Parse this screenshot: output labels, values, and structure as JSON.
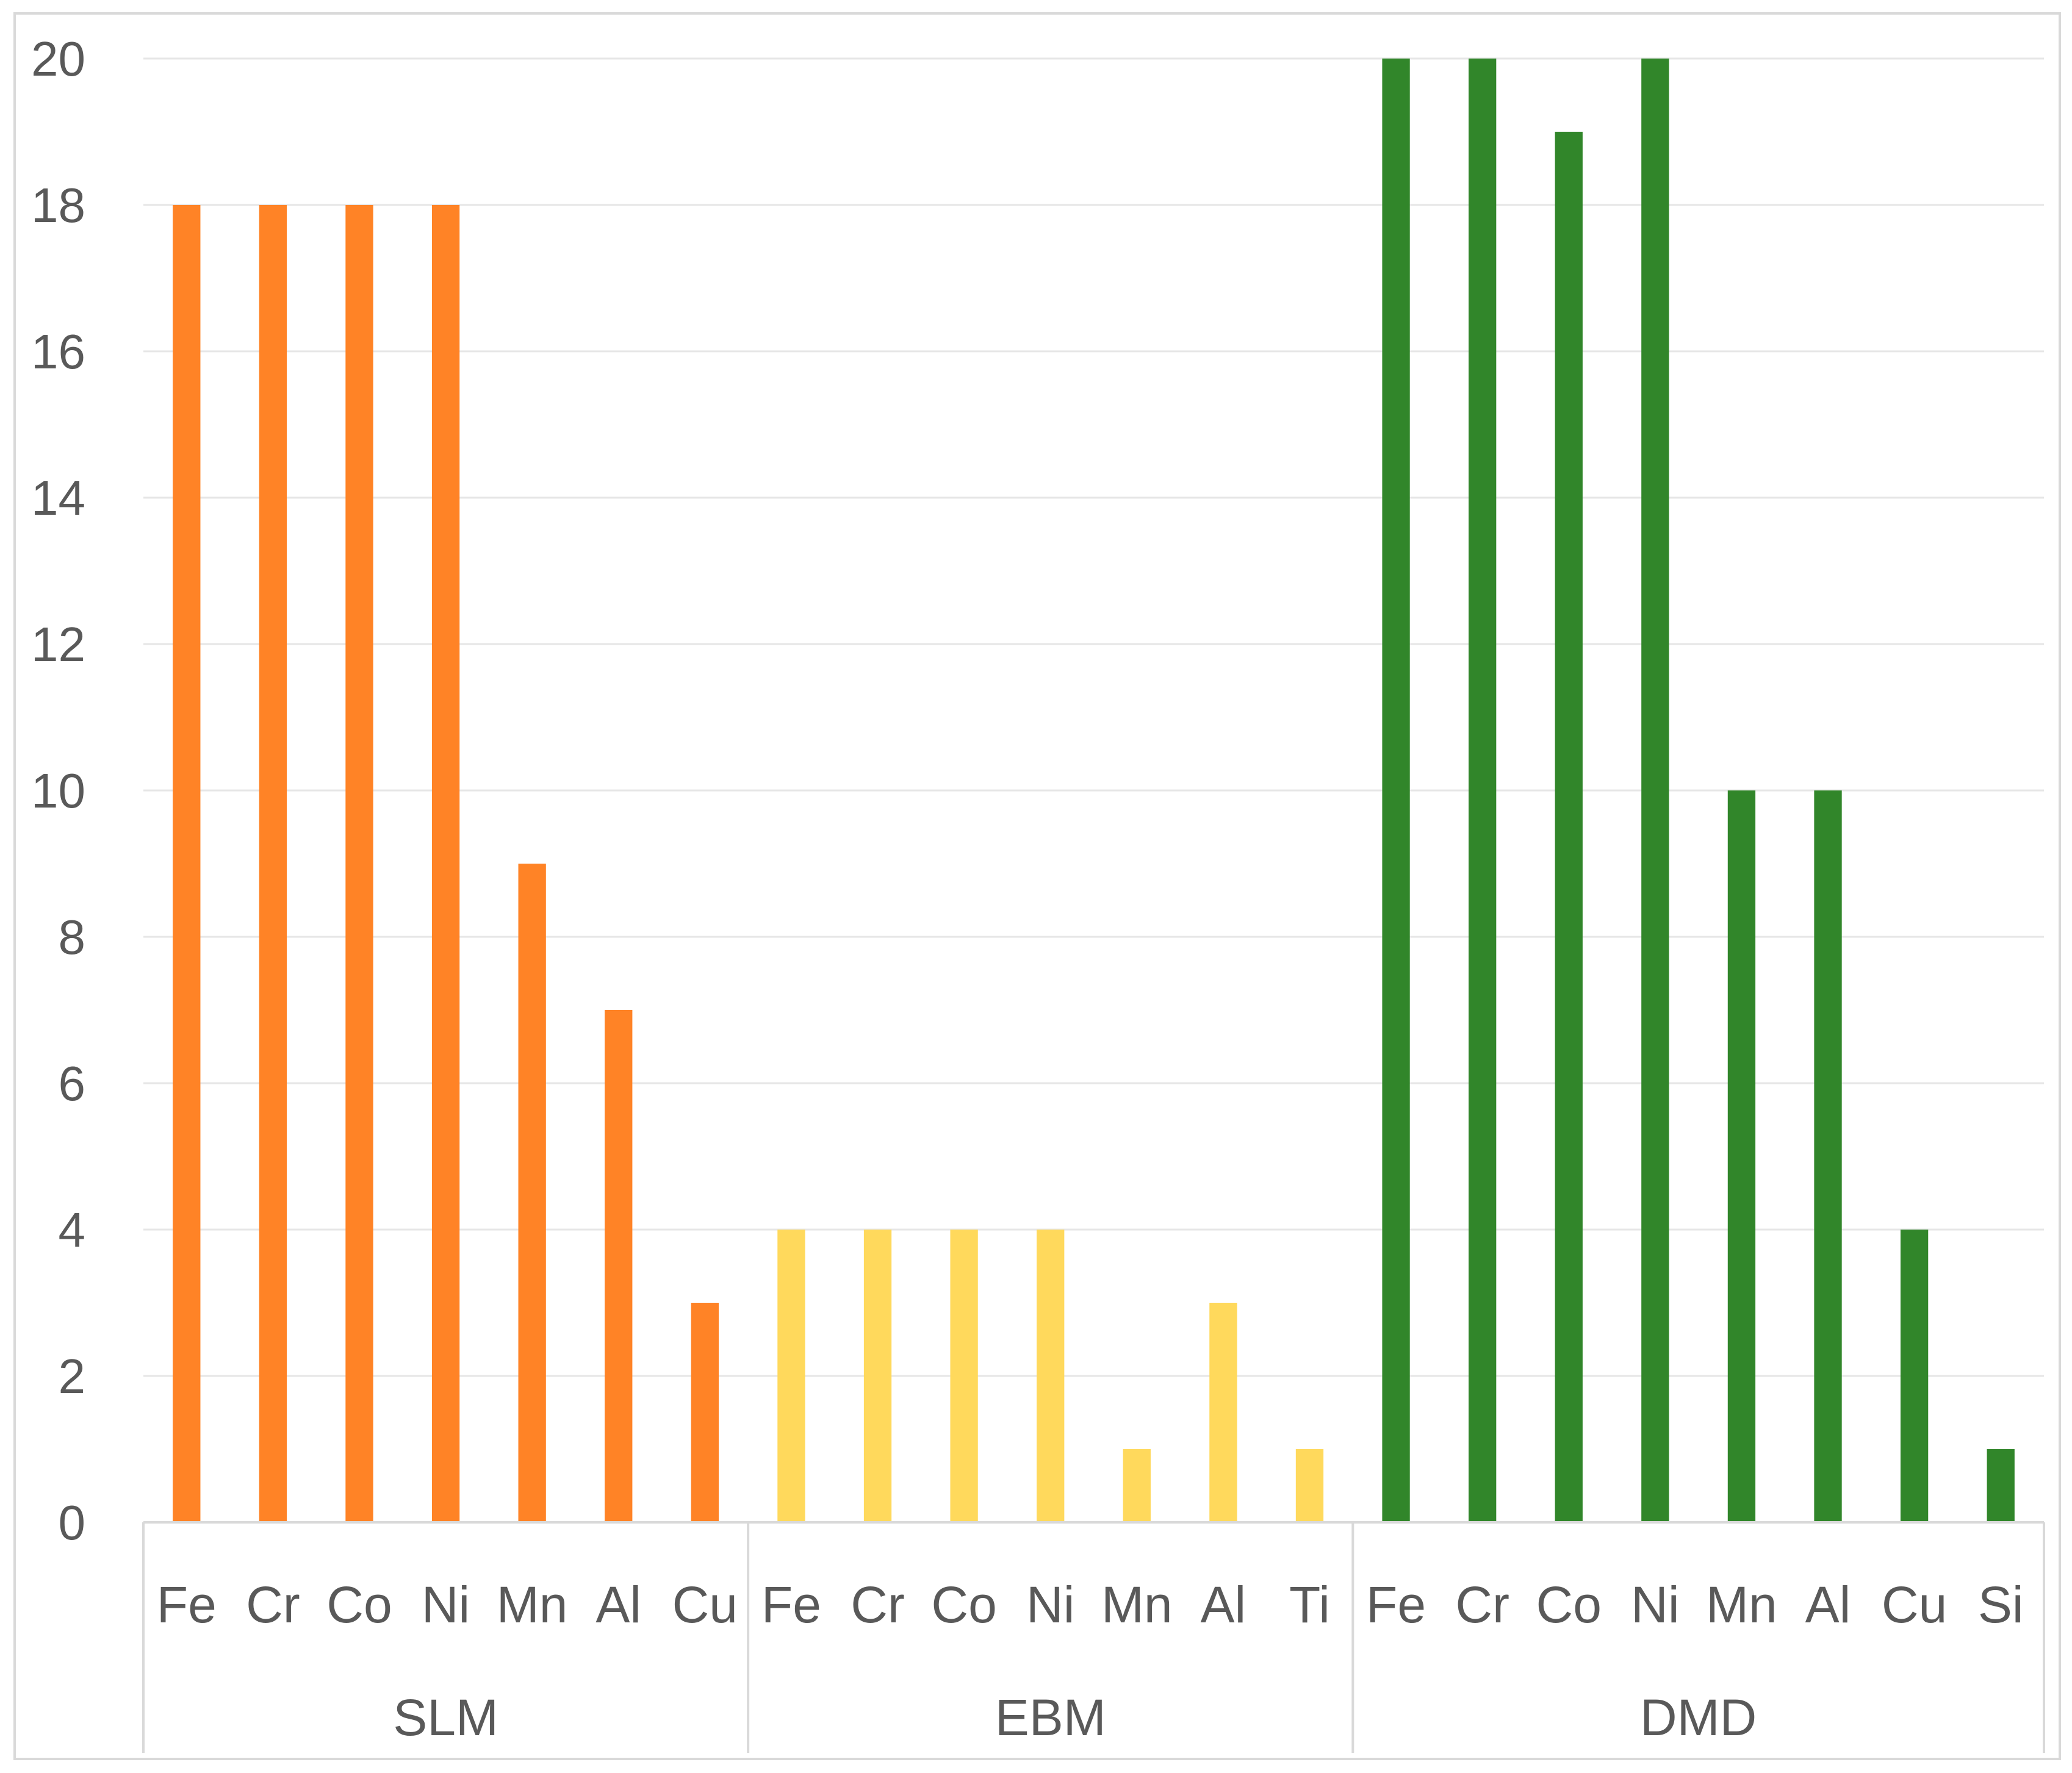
{
  "chart_data": {
    "type": "bar",
    "title": "",
    "xlabel": "",
    "ylabel": "",
    "ylim": [
      0,
      20
    ],
    "yticks": [
      0,
      2,
      4,
      6,
      8,
      10,
      12,
      14,
      16,
      18,
      20
    ],
    "grid": true,
    "legend": "none",
    "groups": [
      {
        "name": "SLM",
        "color": "#ff8326",
        "categories": [
          "Fe",
          "Cr",
          "Co",
          "Ni",
          "Mn",
          "Al",
          "Cu"
        ],
        "values": [
          18,
          18,
          18,
          18,
          9,
          7,
          3
        ]
      },
      {
        "name": "EBM",
        "color": "#ffd95c",
        "categories": [
          "Fe",
          "Cr",
          "Co",
          "Ni",
          "Mn",
          "Al",
          "Ti"
        ],
        "values": [
          4,
          4,
          4,
          4,
          1,
          3,
          1
        ]
      },
      {
        "name": "DMD",
        "color": "#31862a",
        "categories": [
          "Fe",
          "Cr",
          "Co",
          "Ni",
          "Mn",
          "Al",
          "Cu",
          "Si"
        ],
        "values": [
          20,
          20,
          19,
          20,
          10,
          10,
          4,
          1
        ]
      }
    ]
  }
}
